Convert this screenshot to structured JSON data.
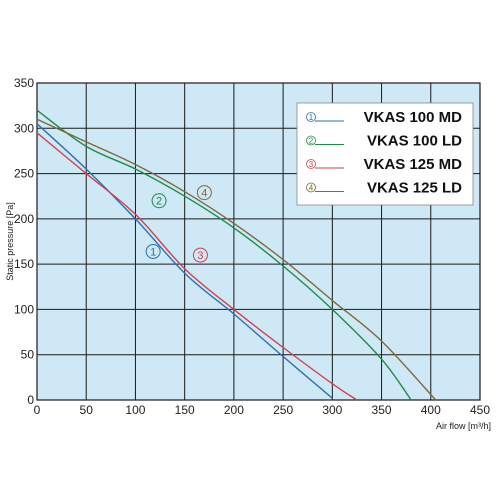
{
  "colors": {
    "plot_background": "#cfe8f5",
    "grid": "#1a1a1a",
    "series_1": "#2f6fb4",
    "series_2": "#1e8a4a",
    "series_3": "#d2404f",
    "series_4": "#7b6a3c"
  },
  "chart_data": {
    "type": "line",
    "title": "",
    "xlabel": "Air flow [m³/h]",
    "ylabel": "Static pressure [Pa]",
    "xlim": [
      0,
      450
    ],
    "ylim": [
      0,
      350
    ],
    "xticks": [
      "0",
      "50",
      "100",
      "150",
      "200",
      "250",
      "300",
      "350",
      "400",
      "450"
    ],
    "yticks": [
      "0",
      "50",
      "100",
      "150",
      "200",
      "250",
      "300",
      "350"
    ],
    "grid": true,
    "legend_position": "top-right",
    "series": [
      {
        "name": "VKAS 100 MD",
        "marker": "1",
        "color": "#2f6fb4",
        "x": [
          0,
          50,
          100,
          150,
          200,
          250,
          300
        ],
        "y": [
          305,
          255,
          200,
          140,
          95,
          48,
          2
        ]
      },
      {
        "name": "VKAS 100 LD",
        "marker": "2",
        "color": "#1e8a4a",
        "x": [
          0,
          50,
          100,
          150,
          200,
          250,
          300,
          350,
          380
        ],
        "y": [
          320,
          280,
          255,
          225,
          190,
          148,
          100,
          45,
          0
        ]
      },
      {
        "name": "VKAS 125 MD",
        "marker": "3",
        "color": "#d2404f",
        "x": [
          0,
          50,
          100,
          150,
          200,
          250,
          300,
          325
        ],
        "y": [
          295,
          250,
          205,
          145,
          100,
          58,
          18,
          0
        ]
      },
      {
        "name": "VKAS 125 LD",
        "marker": "4",
        "color": "#7b6a3c",
        "x": [
          0,
          50,
          100,
          150,
          200,
          250,
          300,
          350,
          405
        ],
        "y": [
          310,
          285,
          260,
          230,
          195,
          155,
          110,
          65,
          0
        ]
      }
    ],
    "curve_markers": [
      {
        "label": "1",
        "series": 0,
        "x": 118,
        "y": 164
      },
      {
        "label": "2",
        "series": 1,
        "x": 124,
        "y": 220
      },
      {
        "label": "3",
        "series": 2,
        "x": 166,
        "y": 160
      },
      {
        "label": "4",
        "series": 3,
        "x": 170,
        "y": 229
      }
    ]
  }
}
